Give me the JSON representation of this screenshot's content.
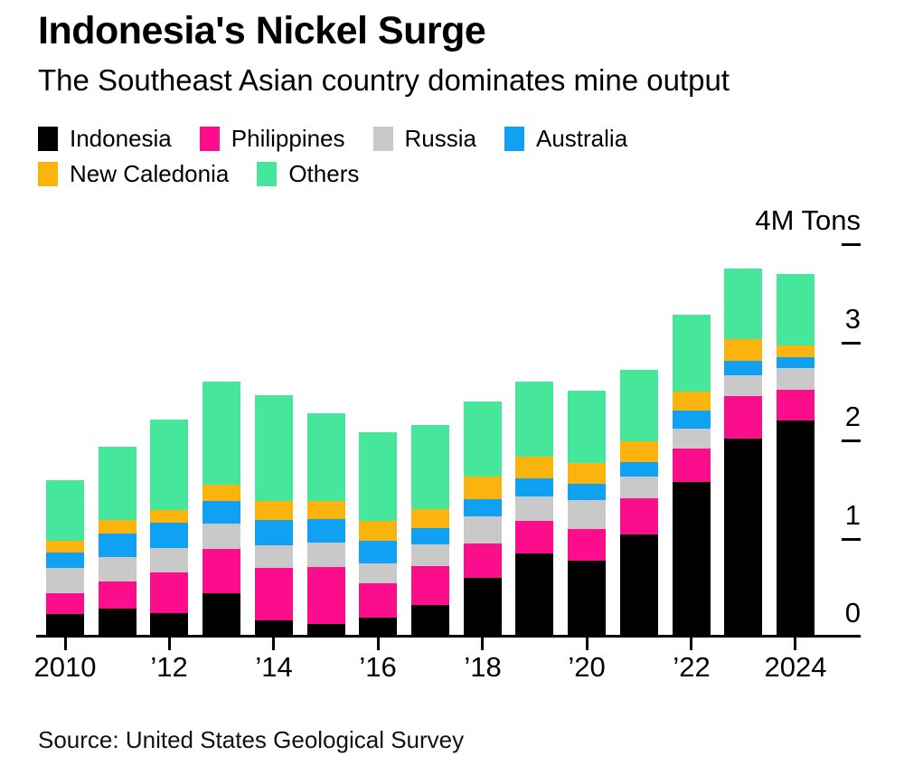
{
  "header": {
    "title": "Indonesia's Nickel Surge",
    "subtitle": "The Southeast Asian country dominates mine output"
  },
  "footer": {
    "source": "Source: United States Geological Survey"
  },
  "chart_data": {
    "type": "bar",
    "stacked": true,
    "title": "Indonesia's Nickel Surge",
    "subtitle": "The Southeast Asian country dominates mine output",
    "unit": "M Tons",
    "grid": false,
    "legend_position": "top",
    "legend_row_break": 4,
    "x": [
      2010,
      2011,
      2012,
      2013,
      2014,
      2015,
      2016,
      2017,
      2018,
      2019,
      2020,
      2021,
      2022,
      2023,
      2024
    ],
    "series": [
      {
        "name": "Indonesia",
        "color": "#000000",
        "values": [
          0.23,
          0.29,
          0.24,
          0.44,
          0.17,
          0.13,
          0.19,
          0.32,
          0.6,
          0.85,
          0.77,
          1.04,
          1.58,
          2.02,
          2.2
        ]
      },
      {
        "name": "Philippines",
        "color": "#fb0d8c",
        "values": [
          0.21,
          0.27,
          0.41,
          0.45,
          0.53,
          0.58,
          0.35,
          0.4,
          0.35,
          0.33,
          0.33,
          0.37,
          0.34,
          0.43,
          0.32
        ]
      },
      {
        "name": "Russia",
        "color": "#c9c9c9",
        "values": [
          0.26,
          0.25,
          0.25,
          0.26,
          0.23,
          0.25,
          0.21,
          0.22,
          0.28,
          0.25,
          0.29,
          0.22,
          0.2,
          0.21,
          0.22
        ]
      },
      {
        "name": "Australia",
        "color": "#10a1f2",
        "values": [
          0.16,
          0.24,
          0.26,
          0.23,
          0.26,
          0.24,
          0.23,
          0.17,
          0.17,
          0.18,
          0.17,
          0.15,
          0.18,
          0.15,
          0.11
        ]
      },
      {
        "name": "New Caledonia",
        "color": "#fbb40e",
        "values": [
          0.12,
          0.14,
          0.13,
          0.17,
          0.19,
          0.18,
          0.2,
          0.19,
          0.23,
          0.22,
          0.21,
          0.21,
          0.2,
          0.22,
          0.12
        ]
      },
      {
        "name": "Others",
        "color": "#46e79b",
        "values": [
          0.61,
          0.75,
          0.92,
          1.05,
          1.08,
          0.9,
          0.9,
          0.86,
          0.77,
          0.77,
          0.74,
          0.73,
          0.78,
          0.72,
          0.73
        ]
      }
    ],
    "ylim": [
      0,
      4
    ],
    "y_ticks": [
      {
        "value": 0,
        "label": "0",
        "dash": false
      },
      {
        "value": 1,
        "label": "1",
        "dash": true
      },
      {
        "value": 2,
        "label": "2",
        "dash": true
      },
      {
        "value": 3,
        "label": "3",
        "dash": true
      },
      {
        "value": 4,
        "label": "4M Tons",
        "dash": true
      }
    ],
    "x_ticks": [
      {
        "year": 2010,
        "label": "2010"
      },
      {
        "year": 2012,
        "label": "’12"
      },
      {
        "year": 2014,
        "label": "’14"
      },
      {
        "year": 2016,
        "label": "’16"
      },
      {
        "year": 2018,
        "label": "’18"
      },
      {
        "year": 2020,
        "label": "’20"
      },
      {
        "year": 2022,
        "label": "’22"
      },
      {
        "year": 2024,
        "label": "2024"
      }
    ]
  }
}
